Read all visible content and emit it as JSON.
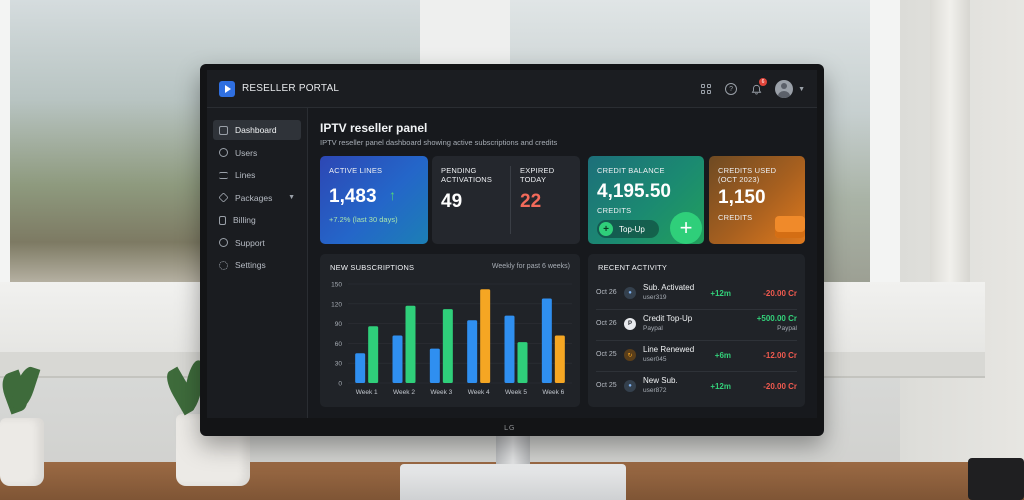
{
  "app": {
    "title": "RESELLER PORTAL"
  },
  "header": {
    "notification_count": "6"
  },
  "sidebar": {
    "items": [
      {
        "label": "Dashboard",
        "icon": "dashboard-icon",
        "active": true
      },
      {
        "label": "Users",
        "icon": "users-icon"
      },
      {
        "label": "Lines",
        "icon": "lines-icon"
      },
      {
        "label": "Packages",
        "icon": "packages-icon"
      },
      {
        "label": "Billing",
        "icon": "billing-icon"
      },
      {
        "label": "Support",
        "icon": "support-icon"
      },
      {
        "label": "Settings",
        "icon": "gear-icon"
      }
    ]
  },
  "main": {
    "title": "IPTV reseller panel",
    "subtitle": "IPTV reseller panel dashboard showing active subscriptions and credits"
  },
  "cards": {
    "active_lines": {
      "label": "ACTIVE LINES",
      "value": "1,483",
      "trend": "+7.2% (last 30 days)"
    },
    "pending": {
      "label_line1": "PENDING",
      "label_line2": "ACTIVATIONS",
      "value": "49"
    },
    "expired": {
      "label_line1": "EXPIRED",
      "label_line2": "TODAY",
      "value": "22"
    },
    "credit_balance": {
      "label": "CREDIT BALANCE",
      "value": "4,195.50",
      "unit": "CREDITS",
      "button": "Top-Up"
    },
    "credits_used": {
      "label_line1": "CREDITS USED",
      "label_line2": "(OCT 2023)",
      "value": "1,150",
      "unit": "CREDITS"
    }
  },
  "subscriptions_panel": {
    "title": "NEW SUBSCRIPTIONS",
    "note": "Weekly for past 6 weeks)"
  },
  "chart_data": {
    "type": "bar",
    "categories": [
      "Week 1",
      "Week 2",
      "Week 3",
      "Week 4",
      "Week 5",
      "Week 6"
    ],
    "series": [
      {
        "values": [
          45,
          72,
          52,
          95,
          102,
          128
        ],
        "color": "#2f8ff0"
      },
      {
        "values": [
          86,
          117,
          112,
          0,
          62,
          0
        ],
        "color": "#2fcf7a"
      },
      {
        "values": [
          0,
          0,
          0,
          142,
          0,
          72
        ],
        "color": "#f5a623"
      }
    ],
    "yticks": [
      "150",
      "120",
      "90",
      "60",
      "30",
      "0"
    ],
    "ylim": [
      0,
      150
    ]
  },
  "activity_panel": {
    "title": "RECENT ACTIVITY",
    "rows": [
      {
        "date": "Oct 26",
        "icon": "user-icon",
        "title": "Sub. Activated",
        "sub": "user319",
        "amount": "+12m",
        "cost": "-20.00 Cr"
      },
      {
        "date": "Oct 26",
        "icon": "paypal-icon",
        "title": "Credit Top-Up",
        "sub": "Paypal",
        "amount": "+500.00 Cr",
        "extra": "Paypal"
      },
      {
        "date": "Oct 25",
        "icon": "refresh-icon",
        "title": "Line Renewed",
        "sub": "user045",
        "amount": "+6m",
        "cost": "-12.00 Cr"
      },
      {
        "date": "Oct 25",
        "icon": "user-icon",
        "title": "New Sub.",
        "sub": "user872",
        "amount": "+12m",
        "cost": "-20.00 Cr"
      }
    ]
  },
  "monitor": {
    "brand": "LG"
  }
}
